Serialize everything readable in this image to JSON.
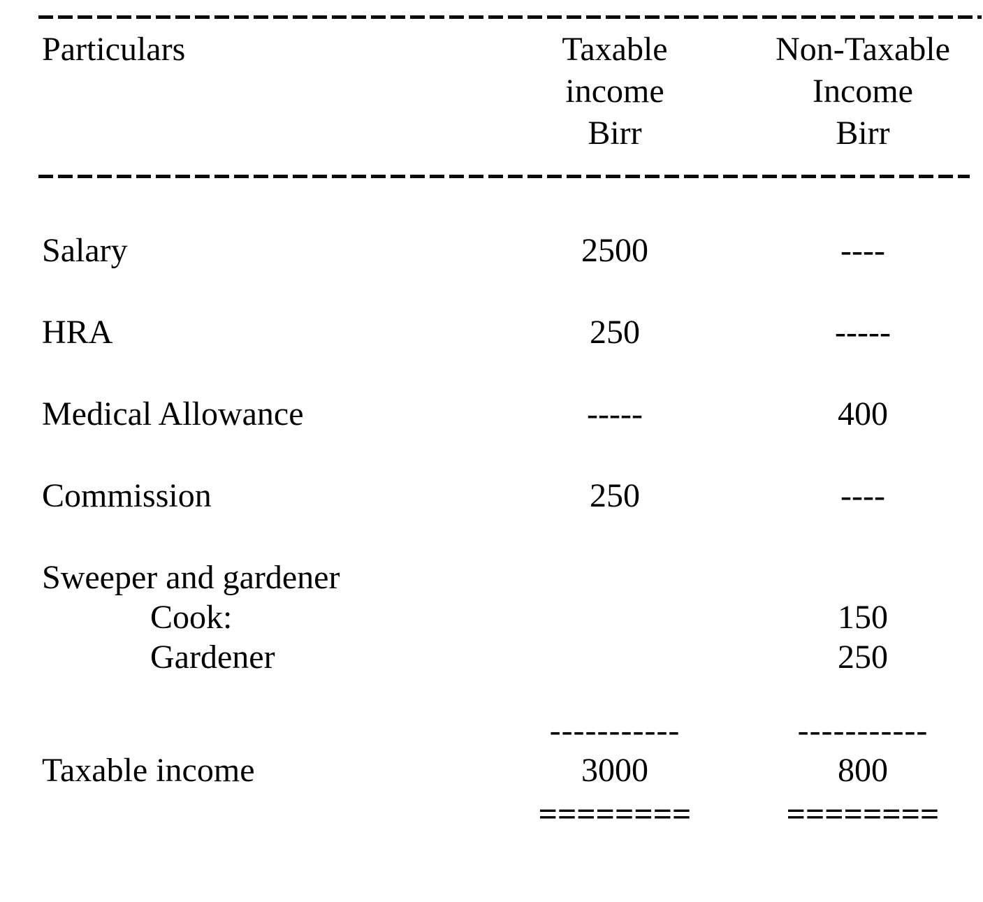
{
  "document": {
    "header": {
      "particulars_label": "Particulars",
      "taxable_col": {
        "line1": "Taxable",
        "line2": "income",
        "line3": "Birr"
      },
      "nontaxable_col": {
        "line1": "Non-Taxable",
        "line2": "Income",
        "line3": "Birr"
      }
    },
    "rows": [
      {
        "label": "Salary",
        "taxable": "2500",
        "nontaxable": "----"
      },
      {
        "label": "HRA",
        "taxable": "250",
        "nontaxable": "-----"
      },
      {
        "label": "Medical Allowance",
        "taxable": "-----",
        "nontaxable": "400"
      },
      {
        "label": "Commission",
        "taxable": "250",
        "nontaxable": "----"
      },
      {
        "label": "Sweeper and gardener",
        "taxable": "",
        "nontaxable": ""
      },
      {
        "label": "Cook:",
        "taxable": "",
        "nontaxable": "150"
      },
      {
        "label": "Gardener",
        "taxable": "",
        "nontaxable": "250"
      }
    ],
    "subtotal_rule": {
      "taxable": "-----------",
      "nontaxable": "-----------"
    },
    "total_row": {
      "label": "Taxable income",
      "taxable": "3000",
      "nontaxable": "800"
    },
    "total_rule": {
      "taxable": "========",
      "nontaxable": "========"
    }
  }
}
